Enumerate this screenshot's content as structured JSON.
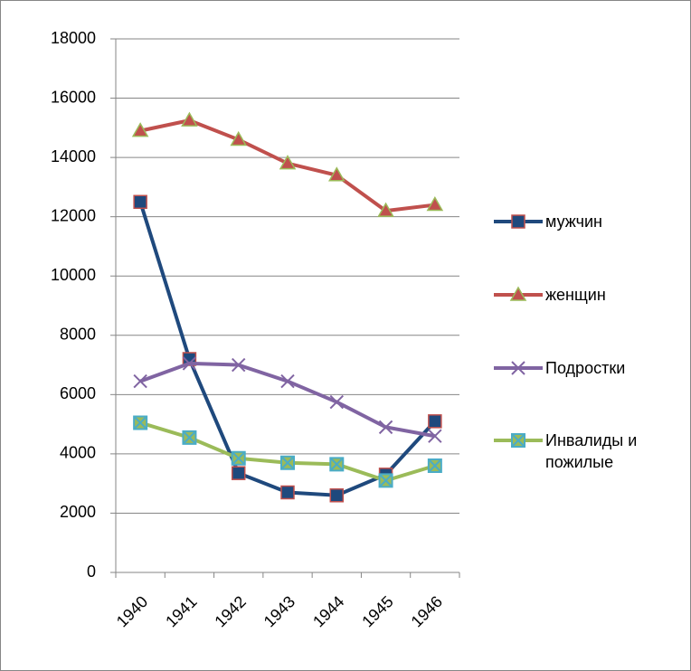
{
  "chart_data": {
    "type": "line",
    "categories": [
      "1940",
      "1941",
      "1942",
      "1943",
      "1944",
      "1945",
      "1946"
    ],
    "series": [
      {
        "name": "мужчин",
        "color": "#1f497d",
        "values": [
          12500,
          7200,
          3350,
          2700,
          2600,
          3300,
          5100
        ]
      },
      {
        "name": "женщин",
        "color": "#c0504d",
        "values": [
          14900,
          15250,
          14600,
          13800,
          13400,
          12200,
          12400
        ]
      },
      {
        "name": "Подростки",
        "color": "#8064a2",
        "values": [
          6450,
          7050,
          7000,
          6450,
          5750,
          4900,
          4600
        ]
      },
      {
        "name": "Инвалиды и пожилые",
        "color": "#9bbb59",
        "values": [
          5050,
          4550,
          3850,
          3700,
          3650,
          3100,
          3600
        ]
      }
    ],
    "ylim": [
      0,
      18000
    ],
    "yticks": [
      0,
      2000,
      4000,
      6000,
      8000,
      10000,
      12000,
      14000,
      16000,
      18000
    ],
    "grid": true,
    "legend": "right"
  }
}
